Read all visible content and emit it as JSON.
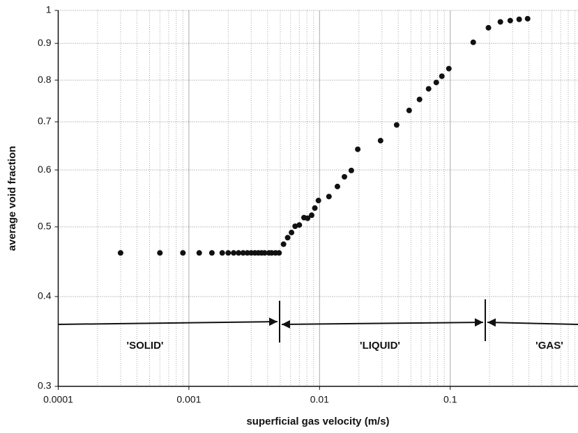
{
  "chart_data": {
    "type": "scatter",
    "x_label": "superficial gas velocity (m/s)",
    "y_label": "average void fraction",
    "x_log": true,
    "y_log": true,
    "grid": true,
    "color": "#111111",
    "xlim": [
      0.0001,
      0.95
    ],
    "ylim": [
      0.3,
      1
    ],
    "xticks": [
      0.0001,
      0.001,
      0.01,
      0.1
    ],
    "yticks": [
      0.3,
      0.4,
      0.5,
      0.6,
      0.7,
      0.8,
      0.9,
      1
    ],
    "annotations": [
      "'SOLID'",
      "'LIQUID'",
      "'GAS'"
    ],
    "series": [
      {
        "name": "void fraction",
        "x": [
          0.0003,
          0.0006,
          0.0009,
          0.0012,
          0.0015,
          0.0018,
          0.002,
          0.0022,
          0.0024,
          0.0026,
          0.0028,
          0.003,
          0.0032,
          0.0034,
          0.0036,
          0.0038,
          0.0041,
          0.0043,
          0.0046,
          0.0049,
          0.0053,
          0.0057,
          0.0061,
          0.0065,
          0.007,
          0.0076,
          0.0081,
          0.0087,
          0.0092,
          0.0098,
          0.0118,
          0.0137,
          0.0155,
          0.0175,
          0.0196,
          0.0293,
          0.0389,
          0.0485,
          0.0582,
          0.0683,
          0.0782,
          0.0863,
          0.0976,
          0.15,
          0.196,
          0.242,
          0.288,
          0.337,
          0.391
        ],
        "values": [
          0.46,
          0.46,
          0.46,
          0.46,
          0.46,
          0.46,
          0.46,
          0.46,
          0.46,
          0.46,
          0.46,
          0.46,
          0.46,
          0.46,
          0.46,
          0.46,
          0.46,
          0.46,
          0.46,
          0.46,
          0.473,
          0.483,
          0.491,
          0.501,
          0.503,
          0.515,
          0.514,
          0.519,
          0.531,
          0.544,
          0.551,
          0.569,
          0.587,
          0.599,
          0.641,
          0.659,
          0.693,
          0.726,
          0.752,
          0.778,
          0.794,
          0.81,
          0.83,
          0.903,
          0.946,
          0.964,
          0.968,
          0.972,
          0.974
        ]
      }
    ]
  }
}
